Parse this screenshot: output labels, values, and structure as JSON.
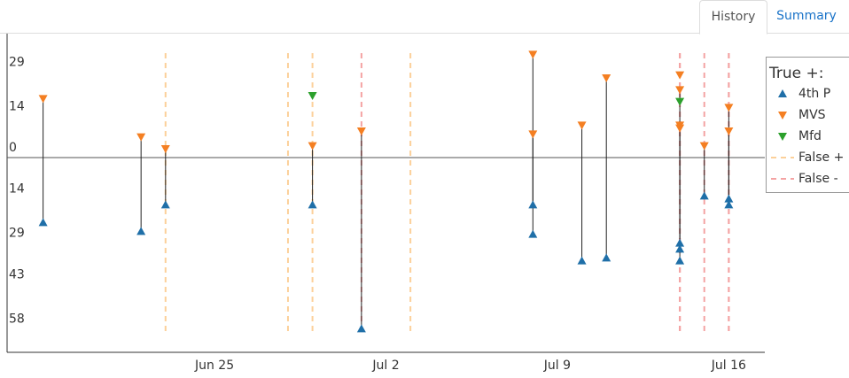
{
  "tabs": [
    "History",
    "Summary"
  ],
  "chart_data": {
    "type": "scatter",
    "legend_title": "True +:",
    "x": [
      "Jun 18",
      "Jun 22",
      "Jun 23",
      "Jun 29",
      "Jul 1",
      "Jul 8",
      "Jul 8",
      "Jul 10",
      "Jul 11",
      "Jul 14",
      "Jul 14",
      "Jul 14",
      "Jul 14",
      "Jul 15",
      "Jul 16",
      "Jul 16"
    ],
    "series": [
      {
        "name": "4th P",
        "color": "#1f6fa8",
        "marker": "triangle-up",
        "values": [
          -22,
          -25,
          -16,
          -16,
          -58,
          -26,
          -16,
          -35,
          -34,
          -31,
          -35,
          null,
          -29,
          -13,
          -14,
          -16
        ]
      },
      {
        "name": "MVS",
        "color": "#f47f22",
        "marker": "triangle-down",
        "values": [
          20,
          7,
          3,
          4,
          9,
          35,
          8,
          11,
          27,
          10,
          23,
          28,
          11,
          4,
          9,
          17
        ]
      },
      {
        "name": "Mfd",
        "color": "#2ca02c",
        "marker": "triangle-down",
        "values": [
          null,
          null,
          null,
          21,
          null,
          null,
          null,
          null,
          null,
          null,
          null,
          19,
          null,
          null,
          null,
          null
        ]
      }
    ],
    "vlines": [
      {
        "name": "False +",
        "color": "#fcd09a",
        "x": [
          "Jun 23",
          "Jun 28",
          "Jun 29",
          "Jul 3"
        ]
      },
      {
        "name": "False -",
        "color": "#f4a3a3",
        "x": [
          "Jul 1",
          "Jul 14",
          "Jul 14",
          "Jul 14",
          "Jul 15",
          "Jul 16",
          "Jul 16"
        ]
      }
    ],
    "xlim": [
      "Jun 17",
      "Jul 17"
    ],
    "xticks": [
      "Jun 25",
      "Jul 2",
      "Jul 9",
      "Jul 16"
    ],
    "ylim": [
      -66,
      42
    ],
    "yticks": [
      29,
      14,
      0,
      {
        "value": -14,
        "label": "14"
      },
      {
        "value": -29,
        "label": "29"
      },
      {
        "value": -43,
        "label": "43"
      },
      {
        "value": -58,
        "label": "58"
      }
    ],
    "zero_line": true
  }
}
